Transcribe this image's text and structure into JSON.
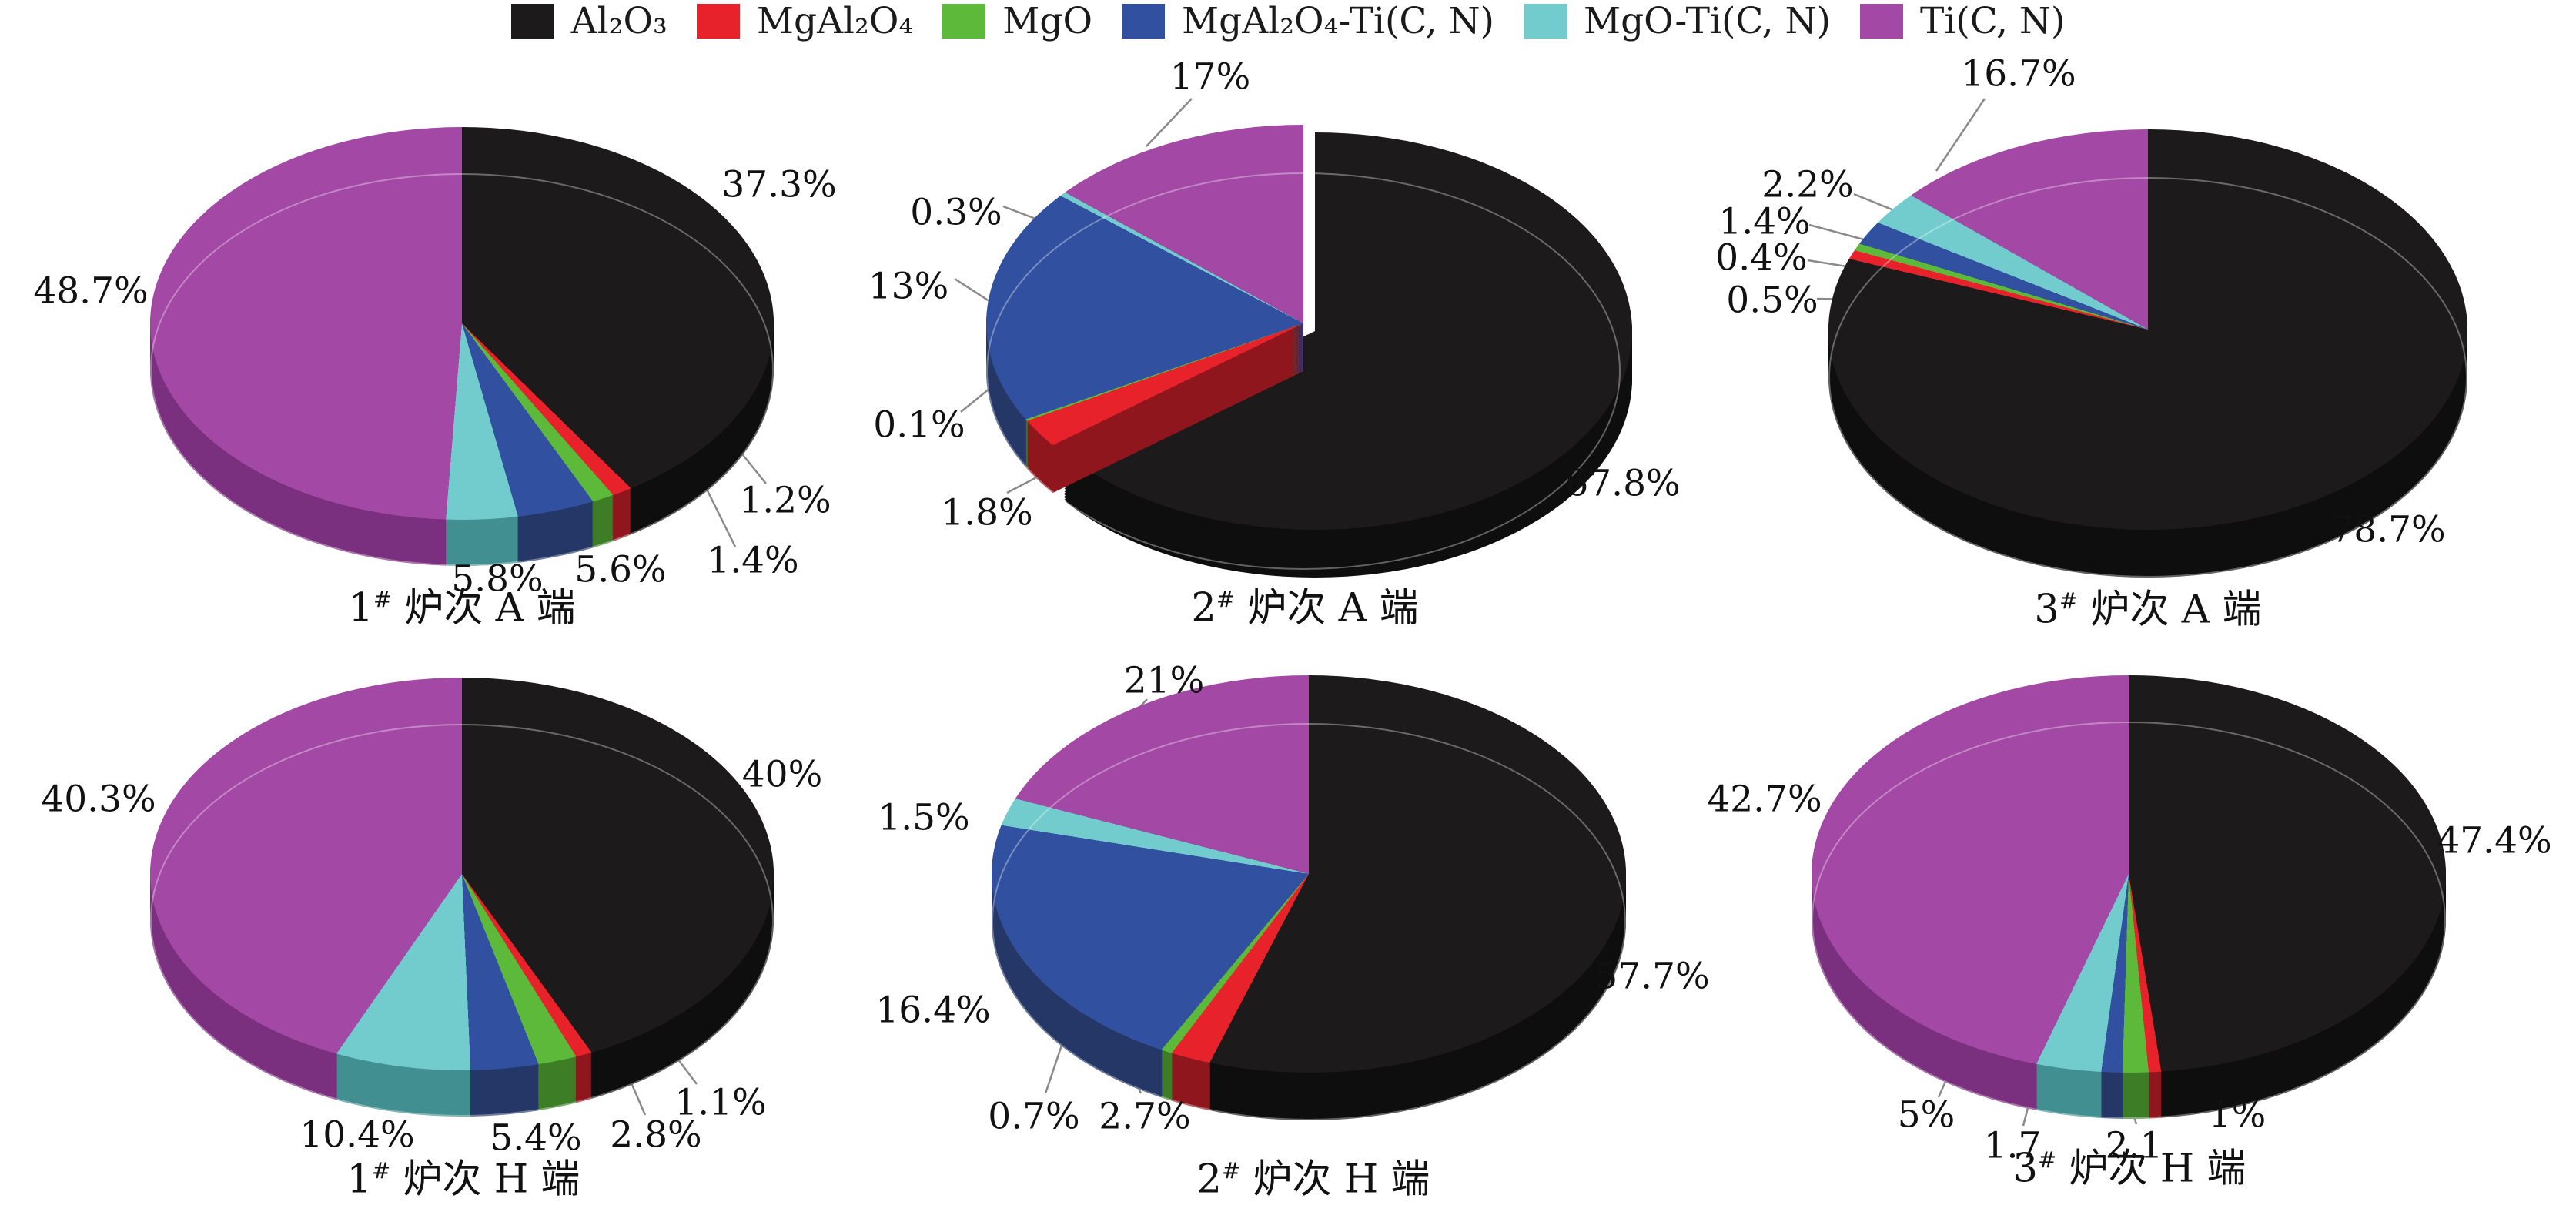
{
  "figure": {
    "background": "#ffffff"
  },
  "materials": [
    {
      "key": "al2o3",
      "label": "Al₂O₃",
      "top": "#1c1a1b",
      "side": "#0f0e0e"
    },
    {
      "key": "mgal2o4",
      "label": "MgAl₂O₄",
      "top": "#e8222a",
      "side": "#8f161c"
    },
    {
      "key": "mgo",
      "label": "MgO",
      "top": "#5cb93a",
      "side": "#3c7d26"
    },
    {
      "key": "mgal2o4_ticn",
      "label": "MgAl₂O₄-Ti(C, N)",
      "top": "#3150a0",
      "side": "#243766"
    },
    {
      "key": "mgo_ticn",
      "label": "MgO-Ti(C, N)",
      "top": "#72cccd",
      "side": "#418f90"
    },
    {
      "key": "ticn",
      "label": "Ti(C, N)",
      "top": "#a349a5",
      "side": "#7b2f7f"
    }
  ],
  "legend": {
    "items": [
      "Al₂O₃",
      "MgAl₂O₄",
      "MgO",
      "MgAl₂O₄-Ti(C, N)",
      "MgO-Ti(C, N)",
      "Ti(C, N)"
    ]
  },
  "chart_data": [
    {
      "type": "pie",
      "id": "pie-1a",
      "title": "1# 炉次 A 端",
      "title_num": "1",
      "title_sup": "#",
      "title_rest": " 炉次 A 端",
      "categories": [
        "Al₂O₃",
        "MgAl₂O₄",
        "MgO",
        "MgAl₂O₄-Ti(C, N)",
        "MgO-Ti(C, N)",
        "Ti(C, N)"
      ],
      "values": [
        37.3,
        1.2,
        1.4,
        5.6,
        5.8,
        48.7
      ],
      "labels": [
        "37.3%",
        "1.2%",
        "1.4%",
        "5.6%",
        "5.8%",
        "48.7%"
      ]
    },
    {
      "type": "pie",
      "id": "pie-2a",
      "title": "2# 炉次 A 端",
      "title_num": "2",
      "title_sup": "#",
      "title_rest": " 炉次 A 端",
      "categories": [
        "Al₂O₃",
        "MgAl₂O₄",
        "MgO",
        "MgAl₂O₄-Ti(C, N)",
        "MgO-Ti(C, N)",
        "Ti(C, N)"
      ],
      "values": [
        67.8,
        1.8,
        0.1,
        13,
        0.3,
        17
      ],
      "labels": [
        "67.8%",
        "1.8%",
        "0.1%",
        "13%",
        "0.3%",
        "17%"
      ]
    },
    {
      "type": "pie",
      "id": "pie-3a",
      "title": "3# 炉次 A 端",
      "title_num": "3",
      "title_sup": "#",
      "title_rest": " 炉次 A 端",
      "categories": [
        "Al₂O₃",
        "MgAl₂O₄",
        "MgO",
        "MgAl₂O₄-Ti(C, N)",
        "MgO-Ti(C, N)",
        "Ti(C, N)"
      ],
      "values": [
        78.7,
        0.5,
        0.4,
        1.4,
        2.2,
        16.7
      ],
      "labels": [
        "78.7%",
        "0.5%",
        "0.4%",
        "1.4%",
        "2.2%",
        "16.7%"
      ]
    },
    {
      "type": "pie",
      "id": "pie-1h",
      "title": "1# 炉次 H 端",
      "title_num": "1",
      "title_sup": "#",
      "title_rest": " 炉次 H 端",
      "categories": [
        "Al₂O₃",
        "MgAl₂O₄",
        "MgO",
        "MgAl₂O₄-Ti(C, N)",
        "MgO-Ti(C, N)",
        "Ti(C, N)"
      ],
      "values": [
        40,
        1.1,
        2.8,
        5.4,
        10.4,
        40.3
      ],
      "labels": [
        "40%",
        "1.1%",
        "2.8%",
        "5.4%",
        "10.4%",
        "40.3%"
      ]
    },
    {
      "type": "pie",
      "id": "pie-2h",
      "title": "2# 炉次 H 端",
      "title_num": "2",
      "title_sup": "#",
      "title_rest": " 炉次 H 端",
      "categories": [
        "Al₂O₃",
        "MgAl₂O₄",
        "MgO",
        "MgAl₂O₄-Ti(C, N)",
        "MgO-Ti(C, N)",
        "Ti(C, N)"
      ],
      "values": [
        57.7,
        2.7,
        0.7,
        16.4,
        1.5,
        21
      ],
      "labels": [
        "57.7%",
        "2.7%",
        "0.7%",
        "16.4%",
        "1.5%",
        "21%"
      ]
    },
    {
      "type": "pie",
      "id": "pie-3h",
      "title": "3# 炉次 H 端",
      "title_num": "3",
      "title_sup": "#",
      "title_rest": " 炉次 H 端",
      "categories": [
        "Al₂O₃",
        "MgAl₂O₄",
        "MgO",
        "MgAl₂O₄-Ti(C, N)",
        "MgO-Ti(C, N)",
        "Ti(C, N)"
      ],
      "values": [
        47.4,
        1,
        2.1,
        1.7,
        5,
        42.7
      ],
      "labels": [
        "47.4%",
        "1%",
        "2.1",
        "1.7",
        "5%",
        "42.7%"
      ]
    }
  ]
}
